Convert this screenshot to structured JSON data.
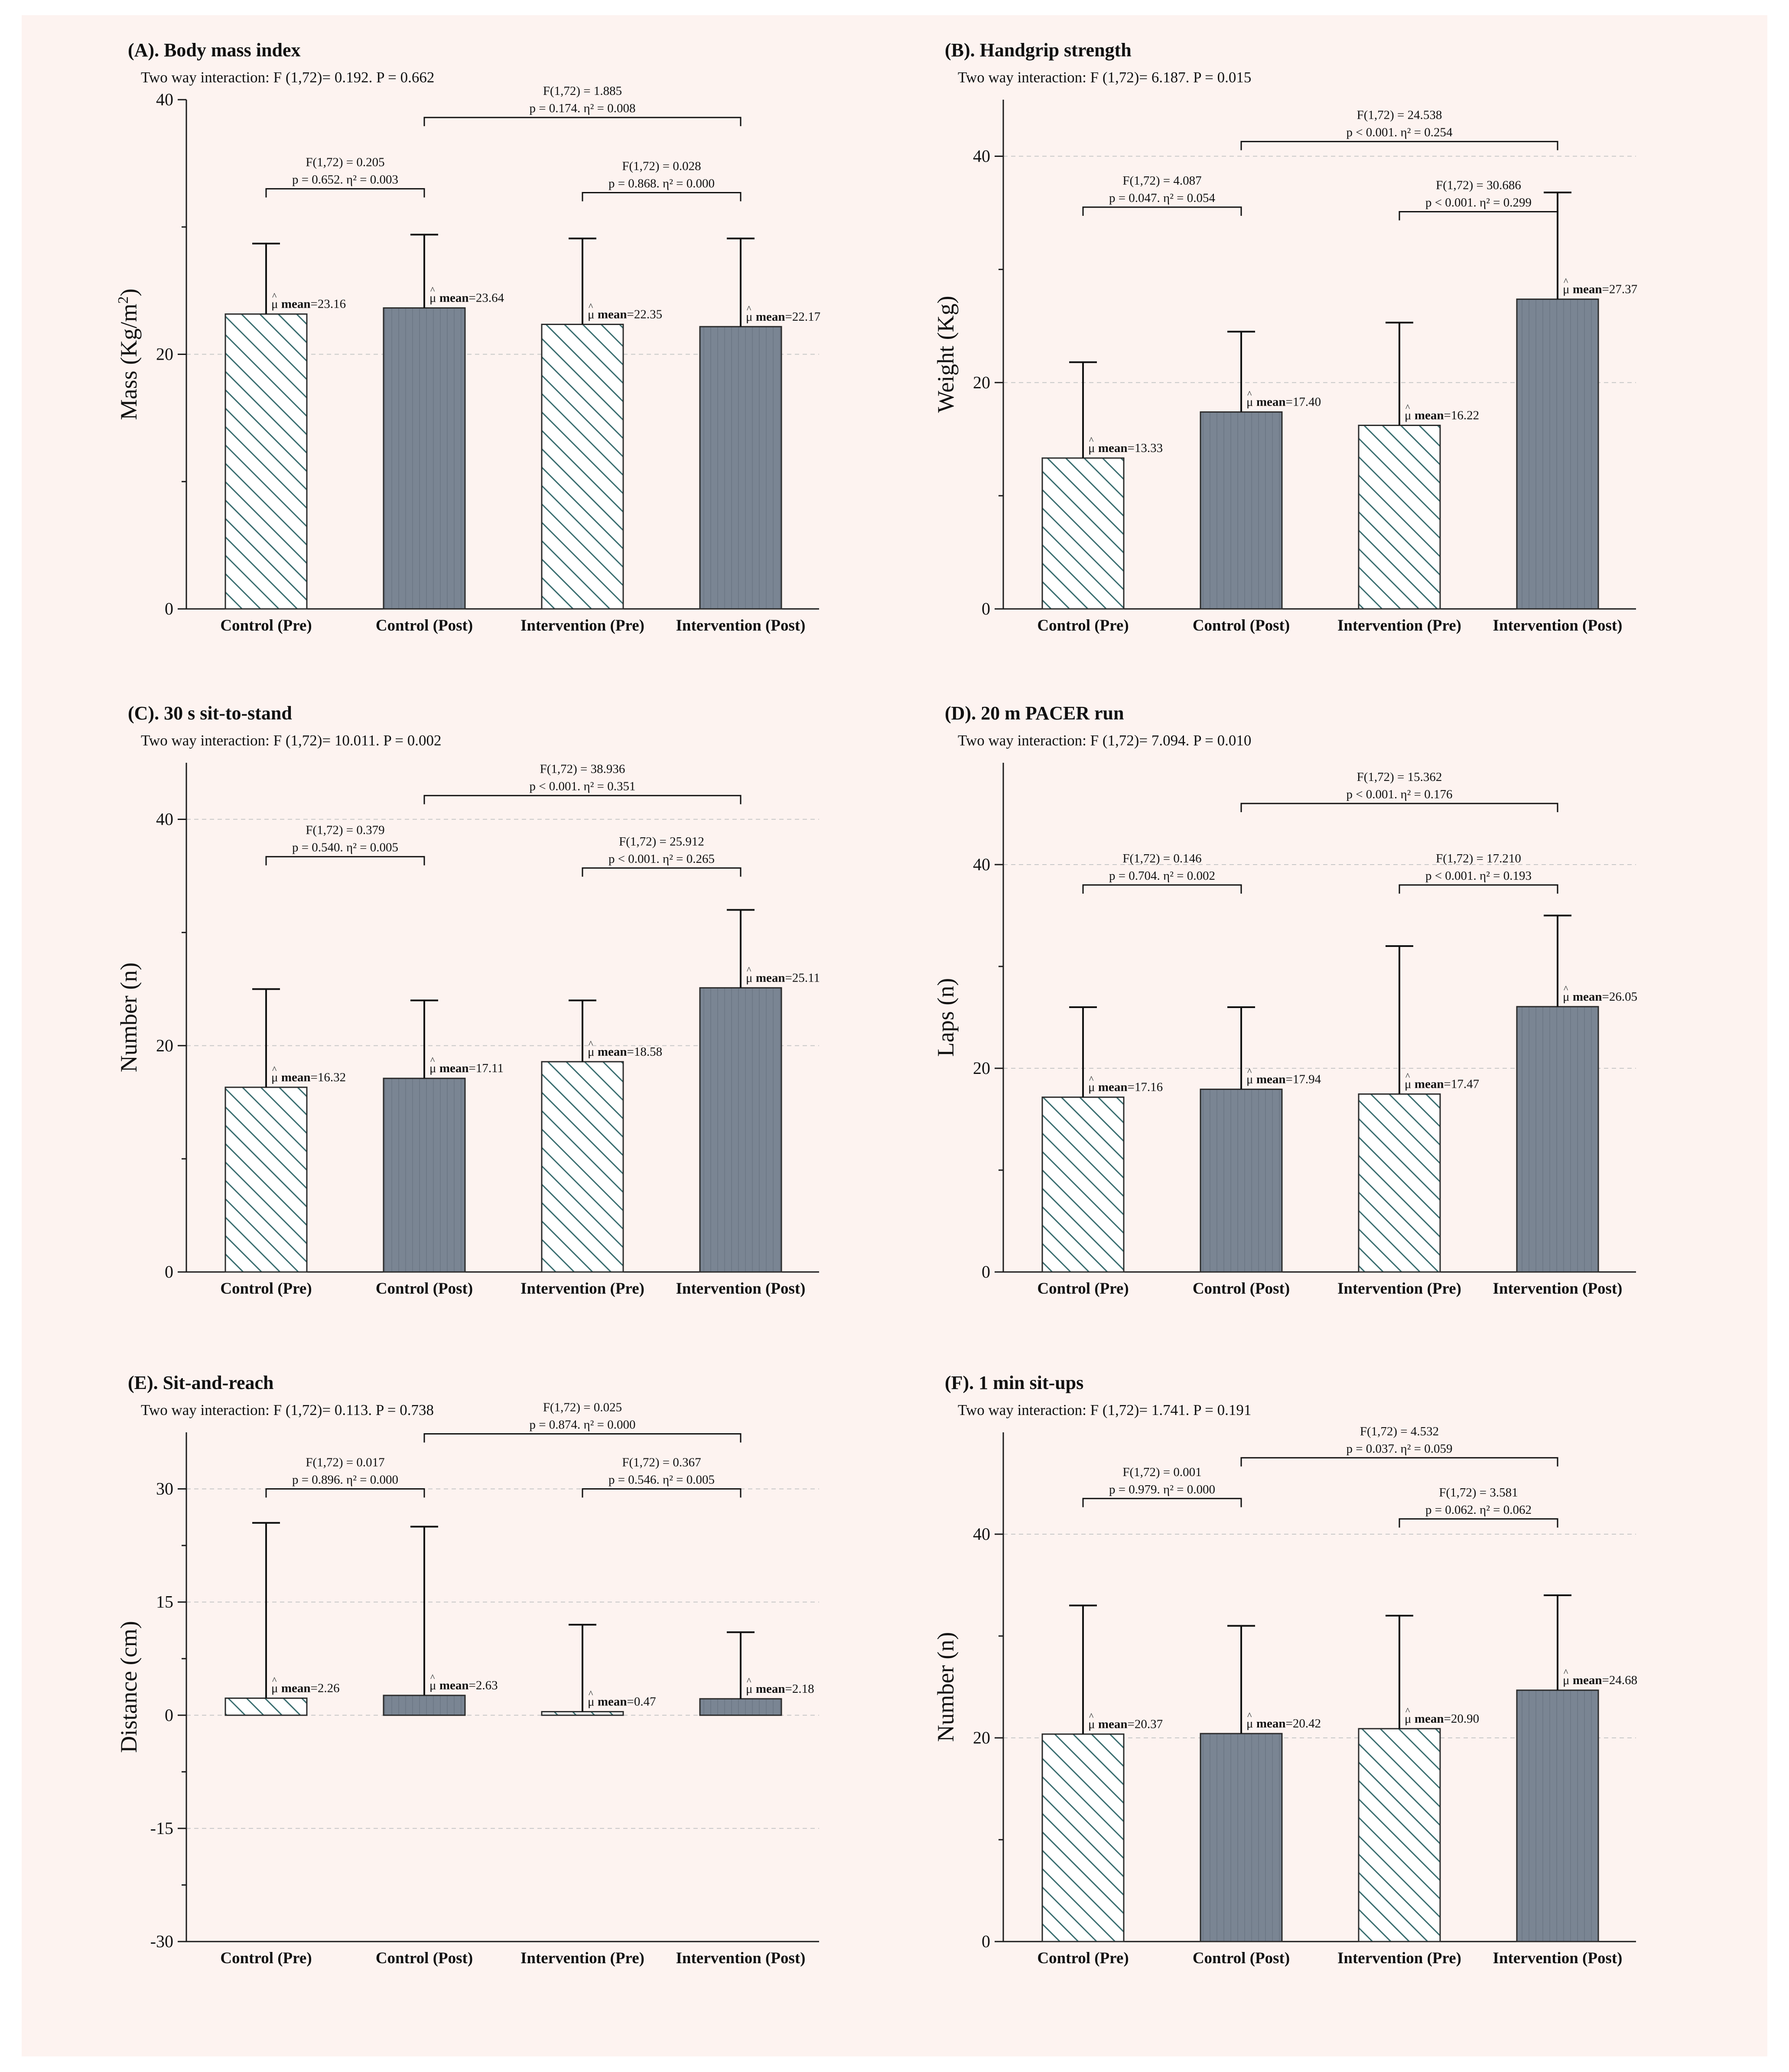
{
  "figure": {
    "background_color": "#fdf3f0",
    "bar_color": "#7a8593",
    "hatch_color": "#3a6e70",
    "axis_color": "#1a1a1a",
    "grid_color": "#c8c8c8"
  },
  "chart_data": [
    {
      "type": "bar",
      "title": "(A). Body mass index",
      "subtitle": "Two way interaction: F (1,72)= 0.192. P = 0.662",
      "ylabel": "Mass (Kg/m2)",
      "ylabel_main": "Mass (Kg/m",
      "ylabel_sup": "2",
      "ylabel_tail": ")",
      "ylim": [
        0,
        40
      ],
      "yticks": [
        0,
        20,
        40
      ],
      "yminor": [
        10,
        30
      ],
      "grid": [
        20
      ],
      "categories": [
        "Control  (Pre)",
        "Control  (Post)",
        "Intervention (Pre)",
        "Intervention  (Post)"
      ],
      "values": [
        23.16,
        23.64,
        22.35,
        22.17
      ],
      "errors": [
        28.7,
        29.4,
        29.1,
        29.1
      ],
      "patterns": [
        "hatch",
        "solid",
        "hatch",
        "solid"
      ],
      "mean_labels": [
        "mean=23.16",
        "mean=23.64",
        "mean=22.35",
        "mean=22.17"
      ],
      "brackets": [
        {
          "from": 0,
          "to": 1,
          "y": 33.0,
          "line1": "F(1,72) = 0.205",
          "line2": "p = 0.652. η² = 0.003"
        },
        {
          "from": 2,
          "to": 3,
          "y": 32.7,
          "line1": "F(1,72) = 0.028",
          "line2": "p = 0.868. η² = 0.000"
        },
        {
          "from": 1,
          "to": 3,
          "y": 38.6,
          "line1": "F(1,72) = 1.885",
          "line2": "p = 0.174. η² = 0.008"
        }
      ]
    },
    {
      "type": "bar",
      "title": "(B). Handgrip strength",
      "subtitle": "Two way interaction: F (1,72)= 6.187. P = 0.015",
      "ylabel": "Weight (Kg)",
      "ylabel_main": "Weight (Kg)",
      "ylabel_sup": "",
      "ylabel_tail": "",
      "ylim": [
        0,
        45
      ],
      "yticks": [
        0,
        20,
        40
      ],
      "yminor": [
        10,
        30
      ],
      "grid": [
        20,
        40
      ],
      "categories": [
        "Control  (Pre)",
        "Control  (Post)",
        "Intervention (Pre)",
        "Intervention  (Post)"
      ],
      "values": [
        13.33,
        17.4,
        16.22,
        27.37
      ],
      "errors": [
        21.8,
        24.5,
        25.3,
        36.8
      ],
      "patterns": [
        "hatch",
        "solid",
        "hatch",
        "solid"
      ],
      "mean_labels": [
        "mean=13.33",
        "mean=17.40",
        "mean=16.22",
        "mean=27.37"
      ],
      "brackets": [
        {
          "from": 0,
          "to": 1,
          "y": 35.5,
          "line1": "F(1,72) = 4.087",
          "line2": "p = 0.047. η² = 0.054"
        },
        {
          "from": 2,
          "to": 3,
          "y": 35.1,
          "line1": "F(1,72) = 30.686",
          "line2": "p < 0.001. η² = 0.299"
        },
        {
          "from": 1,
          "to": 3,
          "y": 41.3,
          "line1": "F(1,72) = 24.538",
          "line2": "p < 0.001. η² = 0.254"
        }
      ]
    },
    {
      "type": "bar",
      "title": "(C). 30 s sit-to-stand",
      "subtitle": "Two way interaction: F (1,72)= 10.011. P = 0.002",
      "ylabel": "Number (n)",
      "ylabel_main": "Number (n)",
      "ylabel_sup": "",
      "ylabel_tail": "",
      "ylim": [
        0,
        45
      ],
      "yticks": [
        0,
        20,
        40
      ],
      "yminor": [
        10,
        30
      ],
      "grid": [
        20,
        40
      ],
      "categories": [
        "Control  (Pre)",
        "Control  (Post)",
        "Intervention (Pre)",
        "Intervention  (Post)"
      ],
      "values": [
        16.32,
        17.11,
        18.58,
        25.11
      ],
      "errors": [
        25.0,
        24.0,
        24.0,
        32.0
      ],
      "patterns": [
        "hatch",
        "solid",
        "hatch",
        "solid"
      ],
      "mean_labels": [
        "mean=16.32",
        "mean=17.11",
        "mean=18.58",
        "mean=25.11"
      ],
      "brackets": [
        {
          "from": 0,
          "to": 1,
          "y": 36.7,
          "line1": "F(1,72) = 0.379",
          "line2": "p = 0.540. η² = 0.005"
        },
        {
          "from": 2,
          "to": 3,
          "y": 35.7,
          "line1": "F(1,72) = 25.912",
          "line2": "p < 0.001. η² = 0.265"
        },
        {
          "from": 1,
          "to": 3,
          "y": 42.1,
          "line1": "F(1,72) = 38.936",
          "line2": "p < 0.001. η² = 0.351"
        }
      ]
    },
    {
      "type": "bar",
      "title": "(D). 20 m PACER run",
      "subtitle": "Two way interaction: F (1,72)= 7.094. P = 0.010",
      "ylabel": "Laps (n)",
      "ylabel_main": "Laps (n)",
      "ylabel_sup": "",
      "ylabel_tail": "",
      "ylim": [
        0,
        50
      ],
      "yticks": [
        0,
        20,
        40
      ],
      "yminor": [
        10,
        30
      ],
      "grid": [
        20,
        40
      ],
      "categories": [
        "Control  (Pre)",
        "Control  (Post)",
        "Intervention (Pre)",
        "Intervention  (Post)"
      ],
      "values": [
        17.16,
        17.94,
        17.47,
        26.05
      ],
      "errors": [
        26.0,
        26.0,
        32.0,
        35.0
      ],
      "patterns": [
        "hatch",
        "solid",
        "hatch",
        "solid"
      ],
      "mean_labels": [
        "mean=17.16",
        "mean=17.94",
        "mean=17.47",
        "mean=26.05"
      ],
      "brackets": [
        {
          "from": 0,
          "to": 1,
          "y": 38.0,
          "line1": "F(1,72) = 0.146",
          "line2": "p = 0.704. η² = 0.002"
        },
        {
          "from": 2,
          "to": 3,
          "y": 38.0,
          "line1": "F(1,72) = 17.210",
          "line2": "p < 0.001. η² = 0.193"
        },
        {
          "from": 1,
          "to": 3,
          "y": 46.0,
          "line1": "F(1,72) = 15.362",
          "line2": "p < 0.001. η² = 0.176"
        }
      ]
    },
    {
      "type": "bar",
      "title": "(E). Sit-and-reach",
      "subtitle": "Two way interaction: F (1,72)= 0.113. P = 0.738",
      "ylabel": "Distance (cm)",
      "ylabel_main": "Distance (cm)",
      "ylabel_sup": "",
      "ylabel_tail": "",
      "ylim": [
        -30,
        37.5
      ],
      "yticks": [
        -30,
        -15,
        0,
        15,
        30
      ],
      "yminor": [
        -22.5,
        -7.5,
        7.5,
        22.5
      ],
      "grid": [
        -15,
        0,
        15,
        30
      ],
      "categories": [
        "Control  (Pre)",
        "Control  (Post)",
        "Intervention (Pre)",
        "Intervention  (Post)"
      ],
      "values": [
        2.26,
        2.63,
        0.47,
        2.18
      ],
      "errors": [
        25.5,
        25.0,
        12.0,
        11.0
      ],
      "patterns": [
        "hatch",
        "solid",
        "hatch",
        "solid"
      ],
      "mean_labels": [
        "mean=2.26",
        "mean=2.63",
        "mean=0.47",
        "mean=2.18"
      ],
      "brackets": [
        {
          "from": 0,
          "to": 1,
          "y": 30.0,
          "line1": "F(1,72) = 0.017",
          "line2": "p = 0.896. η² = 0.000"
        },
        {
          "from": 2,
          "to": 3,
          "y": 30.0,
          "line1": "F(1,72) = 0.367",
          "line2": "p = 0.546. η² = 0.005"
        },
        {
          "from": 1,
          "to": 3,
          "y": 37.3,
          "line1": "F(1,72) = 0.025",
          "line2": "p = 0.874. η² = 0.000"
        }
      ]
    },
    {
      "type": "bar",
      "title": "(F). 1 min sit-ups",
      "subtitle": "Two way interaction: F (1,72)= 1.741. P = 0.191",
      "ylabel": "Number (n)",
      "ylabel_main": "Number (n)",
      "ylabel_sup": "",
      "ylabel_tail": "",
      "ylim": [
        0,
        50
      ],
      "yticks": [
        0,
        20,
        40
      ],
      "yminor": [
        10,
        30
      ],
      "grid": [
        20,
        40
      ],
      "categories": [
        "Control  (Pre)",
        "Control  (Post)",
        "Intervention (Pre)",
        "Intervention  (Post)"
      ],
      "values": [
        20.37,
        20.42,
        20.9,
        24.68
      ],
      "errors": [
        33.0,
        31.0,
        32.0,
        34.0
      ],
      "patterns": [
        "hatch",
        "solid",
        "hatch",
        "solid"
      ],
      "mean_labels": [
        "mean=20.37",
        "mean=20.42",
        "mean=20.90",
        "mean=24.68"
      ],
      "brackets": [
        {
          "from": 0,
          "to": 1,
          "y": 43.5,
          "line1": "F(1,72) = 0.001",
          "line2": "p = 0.979. η² = 0.000"
        },
        {
          "from": 2,
          "to": 3,
          "y": 41.5,
          "line1": "F(1,72) = 3.581",
          "line2": "p = 0.062. η² = 0.062"
        },
        {
          "from": 1,
          "to": 3,
          "y": 47.5,
          "line1": "F(1,72) = 4.532",
          "line2": "p = 0.037. η² = 0.059"
        }
      ]
    }
  ]
}
